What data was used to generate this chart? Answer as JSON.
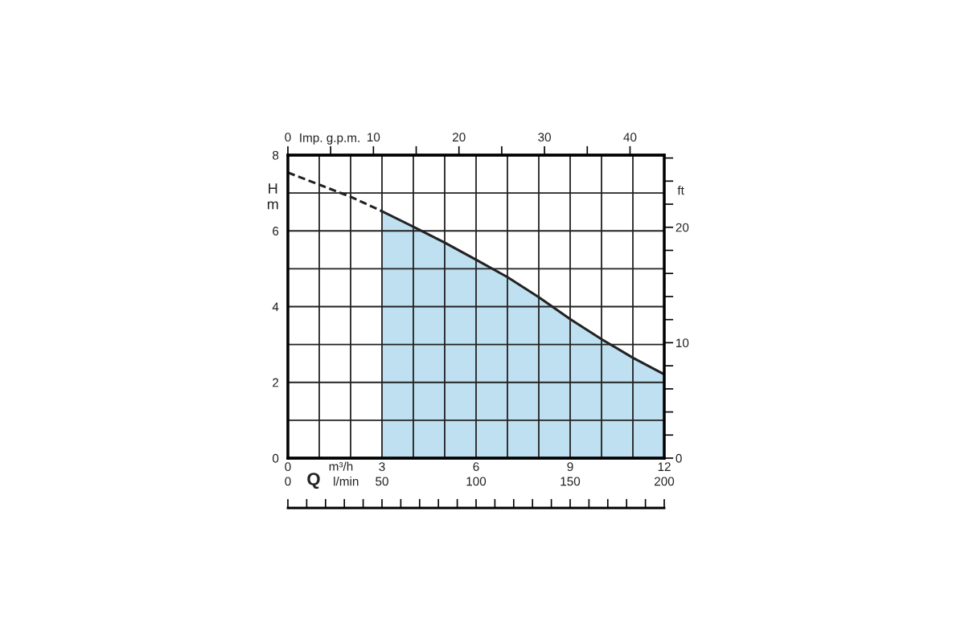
{
  "chart_data": {
    "type": "line",
    "xlabel": "m³/h",
    "ylabel": "H\nm",
    "x2label": "Imp. g.p.m.",
    "y2label": "ft",
    "annotations": [
      "Q",
      "l/min",
      "0",
      "50",
      "100",
      "150",
      "200"
    ],
    "series": [
      {
        "line_style": "dashed",
        "color": "#222222",
        "x": [
          0,
          1,
          2,
          3
        ],
        "values": [
          7.54,
          7.22,
          6.9,
          6.52
        ]
      },
      {
        "type": "area",
        "line_style": "solid",
        "color": "#bfe0f0",
        "x": [
          3,
          4,
          5,
          6,
          7,
          8,
          9,
          10,
          11,
          12
        ],
        "values": [
          6.52,
          6.11,
          5.69,
          5.24,
          4.78,
          4.25,
          3.67,
          3.14,
          2.65,
          2.21
        ]
      }
    ],
    "xlim": [
      0,
      12
    ],
    "xticks": [
      0,
      {
        "value": 1,
        "label": null
      },
      {
        "value": 2,
        "label": null
      },
      3,
      {
        "value": 4,
        "label": null
      },
      {
        "value": 5,
        "label": null
      },
      6,
      {
        "value": 7,
        "label": null
      },
      {
        "value": 8,
        "label": null
      },
      9,
      {
        "value": 10,
        "label": null
      },
      {
        "value": 11,
        "label": null
      },
      12
    ],
    "ylim": [
      0,
      8
    ],
    "yticks": [
      0,
      {
        "value": 1,
        "label": null
      },
      2,
      {
        "value": 3,
        "label": null
      },
      4,
      {
        "value": 5,
        "label": null
      },
      6,
      {
        "value": 7,
        "label": null
      },
      8
    ],
    "x2lim": [
      0,
      44
    ],
    "x2ticks": [
      0,
      {
        "value": 5,
        "label": null
      },
      10,
      {
        "value": 15,
        "label": null
      },
      20,
      {
        "value": 25,
        "label": null
      },
      30,
      {
        "value": 35,
        "label": null
      },
      40
    ],
    "y2lim": [
      0,
      26.25
    ],
    "y2ticks": [
      0,
      {
        "value": 2,
        "label": null
      },
      {
        "value": 4,
        "label": null
      },
      {
        "value": 6,
        "label": null
      },
      {
        "value": 8,
        "label": null
      },
      10,
      {
        "value": 12,
        "label": null
      },
      {
        "value": 14,
        "label": null
      },
      {
        "value": 16,
        "label": null
      },
      {
        "value": 18,
        "label": null
      },
      20,
      {
        "value": 22,
        "label": null
      },
      {
        "value": 24,
        "label": null
      },
      {
        "value": 26,
        "label": null
      }
    ],
    "grid": true
  }
}
